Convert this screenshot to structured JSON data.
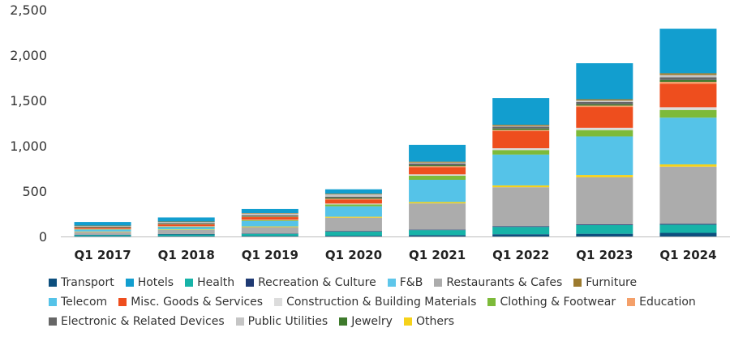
{
  "chart_data": {
    "type": "bar",
    "stacked": true,
    "title": "",
    "xlabel": "",
    "ylabel": "",
    "ylim": [
      0,
      2500
    ],
    "yticks": [
      0,
      500,
      1000,
      1500,
      2000,
      2500
    ],
    "ytick_labels": [
      "0",
      "500",
      "1,000",
      "1,500",
      "2,000",
      "2,500"
    ],
    "categories": [
      "Q1 2017",
      "Q1 2018",
      "Q1 2019",
      "Q1 2020",
      "Q1 2021",
      "Q1 2022",
      "Q1 2023",
      "Q1 2024"
    ],
    "grid": false,
    "legend_position": "bottom",
    "series": [
      {
        "name": "Transport",
        "color": "#0d4f7e",
        "values": [
          3,
          4,
          5,
          8,
          15,
          25,
          30,
          40
        ]
      },
      {
        "name": "Health",
        "color": "#17b3a8",
        "values": [
          15,
          20,
          25,
          45,
          55,
          80,
          95,
          90
        ]
      },
      {
        "name": "Recreation & Culture",
        "color": "#1f3a73",
        "values": [
          2,
          3,
          3,
          5,
          5,
          8,
          8,
          10
        ]
      },
      {
        "name": "Restaurants & Cafes",
        "color": "#acacac",
        "values": [
          30,
          45,
          70,
          150,
          290,
          430,
          520,
          630
        ]
      },
      {
        "name": "Others",
        "color": "#f6d21a",
        "values": [
          5,
          6,
          8,
          10,
          15,
          20,
          25,
          25
        ]
      },
      {
        "name": "Telecom",
        "color": "#55c3e8",
        "values": [
          20,
          25,
          60,
          115,
          245,
          340,
          425,
          515
        ]
      },
      {
        "name": "Clothing & Footwear",
        "color": "#7dba3a",
        "values": [
          5,
          6,
          8,
          20,
          45,
          50,
          70,
          85
        ]
      },
      {
        "name": "Construction & Building Materials",
        "color": "#dcdcdc",
        "values": [
          3,
          4,
          5,
          10,
          15,
          20,
          25,
          30
        ]
      },
      {
        "name": "Misc. Goods & Services",
        "color": "#ee4e1e",
        "values": [
          15,
          20,
          30,
          45,
          80,
          190,
          230,
          260
        ]
      },
      {
        "name": "Education",
        "color": "#f4a06a",
        "values": [
          2,
          3,
          4,
          8,
          10,
          12,
          15,
          20
        ]
      },
      {
        "name": "Jewelry",
        "color": "#3e7a2c",
        "values": [
          2,
          3,
          4,
          8,
          10,
          15,
          15,
          20
        ]
      },
      {
        "name": "Electronic & Related Devices",
        "color": "#666666",
        "values": [
          5,
          8,
          12,
          15,
          20,
          20,
          25,
          30
        ]
      },
      {
        "name": "Public Utilities",
        "color": "#c5c5c5",
        "values": [
          10,
          14,
          20,
          25,
          10,
          10,
          15,
          25
        ]
      },
      {
        "name": "Furniture",
        "color": "#9c7a2e",
        "values": [
          3,
          4,
          5,
          8,
          10,
          12,
          15,
          20
        ]
      },
      {
        "name": "Hotels",
        "color": "#129ecf",
        "values": [
          40,
          45,
          45,
          48,
          185,
          294,
          397,
          490
        ]
      },
      {
        "name": "F&B",
        "color": "#5ec6ea",
        "values": [
          0,
          0,
          0,
          0,
          0,
          0,
          0,
          0
        ]
      }
    ]
  },
  "legend": {
    "rows": [
      [
        {
          "label": "Transport",
          "color": "#0d4f7e"
        },
        {
          "label": "Hotels",
          "color": "#129ecf"
        },
        {
          "label": "Health",
          "color": "#17b3a8"
        },
        {
          "label": "Recreation & Culture",
          "color": "#1f3a73"
        },
        {
          "label": "F&B",
          "color": "#5ec6ea"
        },
        {
          "label": "Restaurants & Cafes",
          "color": "#acacac"
        },
        {
          "label": "Furniture",
          "color": "#9c7a2e"
        }
      ],
      [
        {
          "label": "Telecom",
          "color": "#55c3e8"
        },
        {
          "label": "Misc. Goods & Services",
          "color": "#ee4e1e"
        },
        {
          "label": "Construction & Building Materials",
          "color": "#dcdcdc"
        },
        {
          "label": "Clothing & Footwear",
          "color": "#7dba3a"
        },
        {
          "label": "Education",
          "color": "#f4a06a"
        }
      ],
      [
        {
          "label": "Electronic & Related Devices",
          "color": "#666666"
        },
        {
          "label": "Public Utilities",
          "color": "#c5c5c5"
        },
        {
          "label": "Jewelry",
          "color": "#3e7a2c"
        },
        {
          "label": "Others",
          "color": "#f6d21a"
        }
      ]
    ]
  }
}
